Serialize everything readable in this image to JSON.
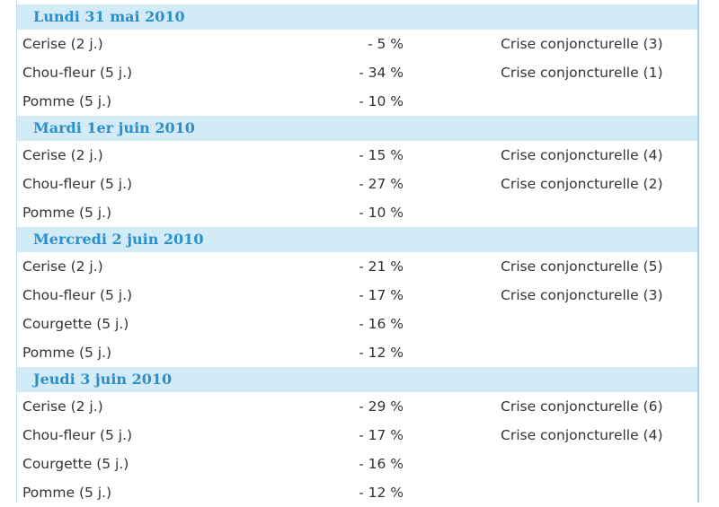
{
  "sections": [
    {
      "heading": "Lundi 31 mai 2010",
      "rows": [
        [
          "Cerise (2 j.)",
          "- 5 %",
          "Crise conjoncturelle (3)"
        ],
        [
          "Chou-fleur (5 j.)",
          "- 34 %",
          "Crise conjoncturelle (1)"
        ],
        [
          "Pomme (5 j.)",
          "- 10 %",
          null
        ]
      ]
    },
    {
      "heading": "Mardi 1er juin 2010",
      "rows": [
        [
          "Cerise (2 j.)",
          "- 15 %",
          "Crise conjoncturelle (4)"
        ],
        [
          "Chou-fleur (5 j.)",
          "- 27 %",
          "Crise conjoncturelle (2)"
        ],
        [
          "Pomme (5 j.)",
          "- 10 %",
          null
        ]
      ]
    },
    {
      "heading": "Mercredi 2 juin 2010",
      "rows": [
        [
          "Cerise (2 j.)",
          "- 21 %",
          "Crise conjoncturelle (5)"
        ],
        [
          "Chou-fleur (5 j.)",
          "- 17 %",
          "Crise conjoncturelle (3)"
        ],
        [
          "Courgette (5 j.)",
          "- 16 %",
          null
        ],
        [
          "Pomme (5 j.)",
          "- 12 %",
          null
        ]
      ]
    },
    {
      "heading": "Jeudi 3 juin 2010",
      "rows": [
        [
          "Cerise (2 j.)",
          "- 29 %",
          "Crise conjoncturelle (6)"
        ],
        [
          "Chou-fleur (5 j.)",
          "- 17 %",
          "Crise conjoncturelle (4)"
        ],
        [
          "Courgette (5 j.)",
          "- 16 %",
          null
        ],
        [
          "Pomme (5 j.)",
          "- 12 %",
          null
        ]
      ]
    }
  ]
}
